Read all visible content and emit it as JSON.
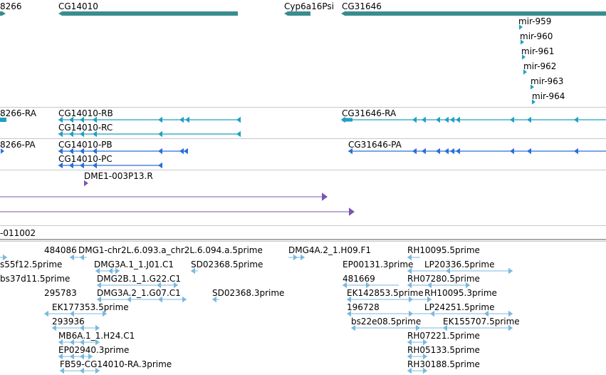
{
  "colors": {
    "gene": "#3a8d8e",
    "transcript": "#1fa0c0",
    "protein": "#2a6fd6",
    "pcr": "#7b55b5",
    "est": "#7ab8e0",
    "divider": "#c8c8c8"
  },
  "genes": {
    "g1": "8266",
    "g2": "CG14010",
    "g3": "Cyp6a16Psi",
    "g4": "CG31646"
  },
  "mirnas": [
    "mir-959",
    "mir-960",
    "mir-961",
    "mir-962",
    "mir-963",
    "mir-964"
  ],
  "transcripts": {
    "t1": "8266-RA",
    "t2": "CG14010-RB",
    "t3": "CG14010-RC",
    "t4": "CG31646-RA"
  },
  "proteins": {
    "p1": "8266-PA",
    "p2": "CG14010-PB",
    "p3": "CG14010-PC",
    "p4": "CG31646-PA"
  },
  "pcr_products": {
    "a": "DME1-003P13.R"
  },
  "other_track": {
    "label": "-011002"
  },
  "ests": {
    "e1": "484086",
    "e2": "DMG1-chr2L.6.093.a_chr2L.6.094.a.5prime",
    "e3": "DMG4A.2_1.H09.F1",
    "e4": "RH10095.5prime",
    "e5": "s55f12.5prime",
    "e6": "DMG3A.1_1.J01.C1",
    "e7": "SD02368.5prime",
    "e8": "EP00131.3prime",
    "e9": "LP20336.5prime",
    "e10": "bs37d11.5prime",
    "e11": "DMG2B.1_1.G22.C1",
    "e12": "481669",
    "e13": "RH07280.5prime",
    "e14": "295783",
    "e15": "DMG3A.2_1.G07.C1",
    "e16": "SD02368.3prime",
    "e17": "EK142853.5prime",
    "e18": "RH10095.3prime",
    "e19": "EK177353.5prime",
    "e20": "196728",
    "e21": "LP24251.5prime",
    "e22": "293936",
    "e23": "bs22e08.5prime",
    "e24": "EK155707.5prime",
    "e25": "MB6A.1_1.H24.C1",
    "e26": "RH07221.5prime",
    "e27": "EP02940.3prime",
    "e28": "RH05133.5prime",
    "e29": "FB59-CG14010-RA.3prime",
    "e30": "RH30188.5prime"
  }
}
